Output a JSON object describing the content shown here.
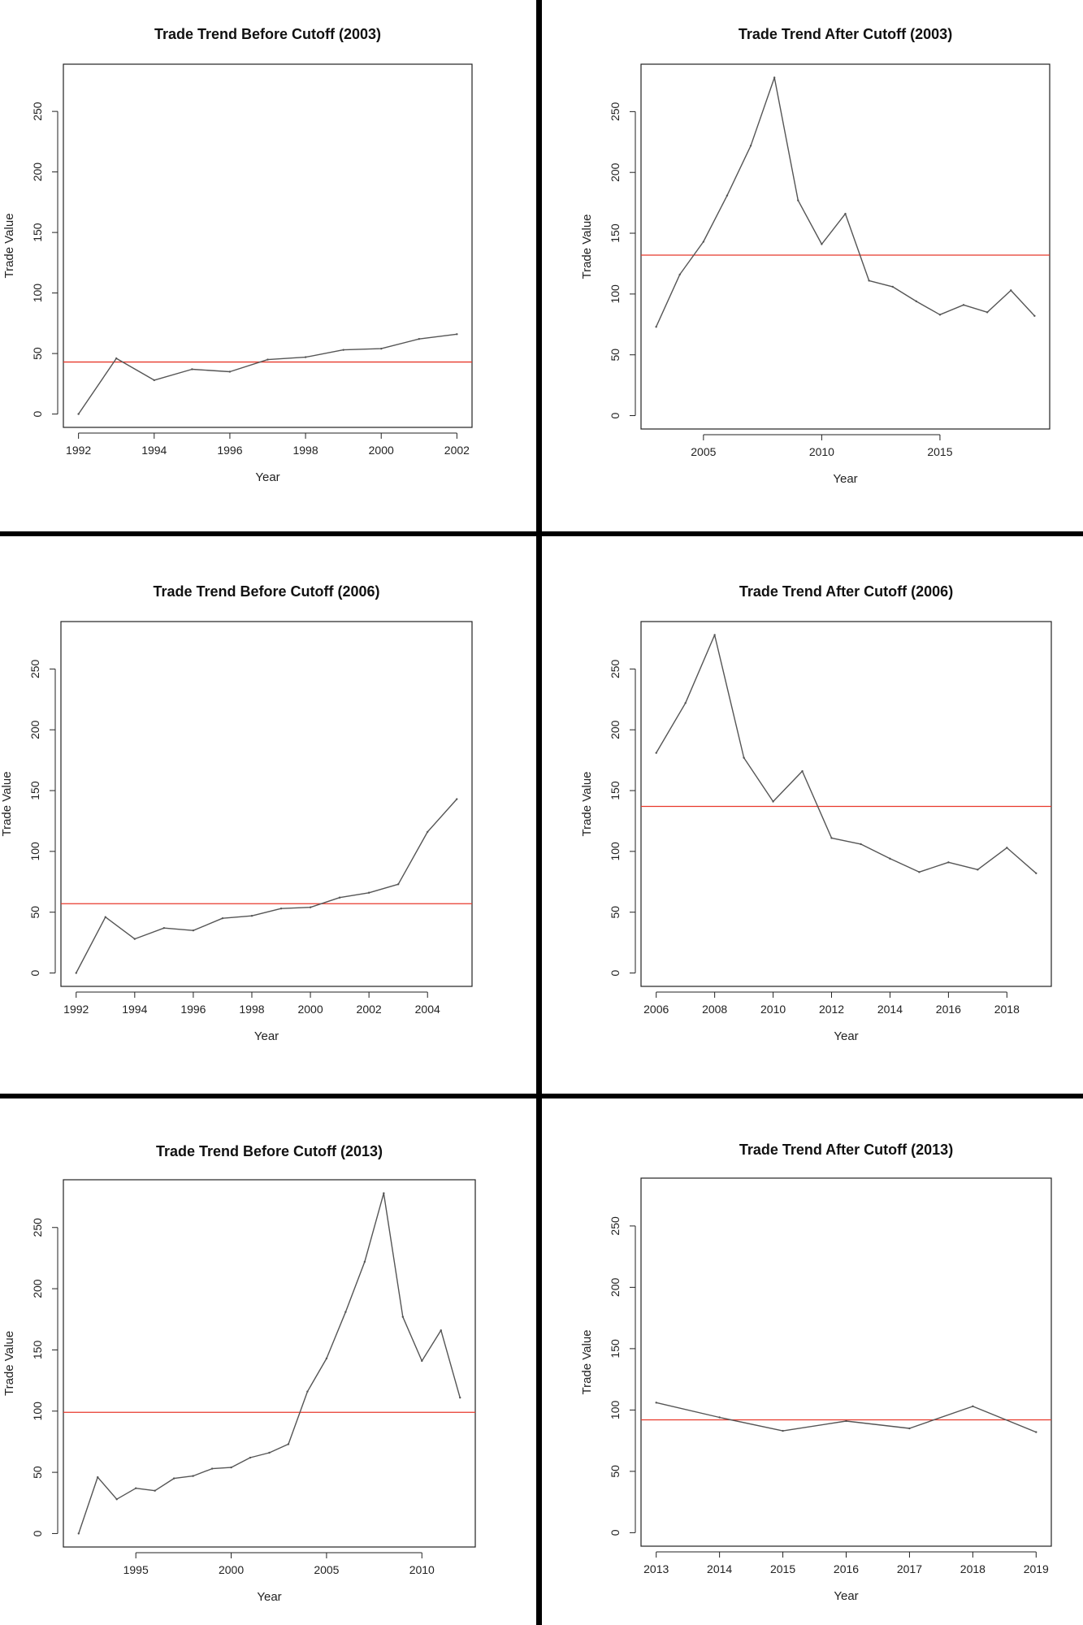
{
  "colors": {
    "series_line": "#555555",
    "mean_line": "#e8392b",
    "axis": "#222222",
    "divider": "#000000",
    "background": "#ffffff"
  },
  "chart_data": [
    {
      "type": "line",
      "title": "Trade Trend Before Cutoff (2003)",
      "xlabel": "Year",
      "ylabel": "Trade Value",
      "xlim": [
        1991.6,
        2002.4
      ],
      "ylim": [
        -11,
        289
      ],
      "xticks": [
        1992,
        1994,
        1996,
        1998,
        2000,
        2002
      ],
      "yticks": [
        0,
        50,
        100,
        150,
        200,
        250
      ],
      "x": [
        1992,
        1993,
        1994,
        1995,
        1996,
        1997,
        1998,
        1999,
        2000,
        2001,
        2002
      ],
      "y": [
        0,
        46,
        28,
        37,
        35,
        45,
        47,
        53,
        54,
        62,
        66
      ],
      "hline": 43,
      "grid": false
    },
    {
      "type": "line",
      "title": "Trade Trend After Cutoff (2003)",
      "xlabel": "Year",
      "ylabel": "Trade Value",
      "xlim": [
        2002.36,
        2019.64
      ],
      "ylim": [
        -11,
        289
      ],
      "xticks": [
        2005,
        2010,
        2015
      ],
      "yticks": [
        0,
        50,
        100,
        150,
        200,
        250
      ],
      "x": [
        2003,
        2004,
        2005,
        2006,
        2007,
        2008,
        2009,
        2010,
        2011,
        2012,
        2013,
        2014,
        2015,
        2016,
        2017,
        2018,
        2019
      ],
      "y": [
        73,
        116,
        143,
        181,
        222,
        278,
        177,
        141,
        166,
        111,
        106,
        94,
        83,
        91,
        85,
        103,
        82
      ],
      "hline": 132,
      "grid": false
    },
    {
      "type": "line",
      "title": "Trade Trend Before Cutoff (2006)",
      "xlabel": "Year",
      "ylabel": "Trade Value",
      "xlim": [
        1991.48,
        2005.52
      ],
      "ylim": [
        -11,
        289
      ],
      "xticks": [
        1992,
        1994,
        1996,
        1998,
        2000,
        2002,
        2004
      ],
      "yticks": [
        0,
        50,
        100,
        150,
        200,
        250
      ],
      "x": [
        1992,
        1993,
        1994,
        1995,
        1996,
        1997,
        1998,
        1999,
        2000,
        2001,
        2002,
        2003,
        2004,
        2005
      ],
      "y": [
        0,
        46,
        28,
        37,
        35,
        45,
        47,
        53,
        54,
        62,
        66,
        73,
        116,
        143
      ],
      "hline": 57,
      "grid": false
    },
    {
      "type": "line",
      "title": "Trade Trend After Cutoff (2006)",
      "xlabel": "Year",
      "ylabel": "Trade Value",
      "xlim": [
        2005.48,
        2019.52
      ],
      "ylim": [
        -11,
        289
      ],
      "xticks": [
        2006,
        2008,
        2010,
        2012,
        2014,
        2016,
        2018
      ],
      "yticks": [
        0,
        50,
        100,
        150,
        200,
        250
      ],
      "x": [
        2006,
        2007,
        2008,
        2009,
        2010,
        2011,
        2012,
        2013,
        2014,
        2015,
        2016,
        2017,
        2018,
        2019
      ],
      "y": [
        181,
        222,
        278,
        177,
        141,
        166,
        111,
        106,
        94,
        83,
        91,
        85,
        103,
        82
      ],
      "hline": 137,
      "grid": false
    },
    {
      "type": "line",
      "title": "Trade Trend Before Cutoff (2013)",
      "xlabel": "Year",
      "ylabel": "Trade Value",
      "xlim": [
        1991.2,
        2012.8
      ],
      "ylim": [
        -11,
        289
      ],
      "xticks": [
        1995,
        2000,
        2005,
        2010
      ],
      "yticks": [
        0,
        50,
        100,
        150,
        200,
        250
      ],
      "x": [
        1992,
        1993,
        1994,
        1995,
        1996,
        1997,
        1998,
        1999,
        2000,
        2001,
        2002,
        2003,
        2004,
        2005,
        2006,
        2007,
        2008,
        2009,
        2010,
        2011,
        2012
      ],
      "y": [
        0,
        46,
        28,
        37,
        35,
        45,
        47,
        53,
        54,
        62,
        66,
        73,
        116,
        143,
        181,
        222,
        278,
        177,
        141,
        166,
        111
      ],
      "hline": 99,
      "grid": false
    },
    {
      "type": "line",
      "title": "Trade Trend After Cutoff (2013)",
      "xlabel": "Year",
      "ylabel": "Trade Value",
      "xlim": [
        2012.76,
        2019.24
      ],
      "ylim": [
        -11,
        289
      ],
      "xticks": [
        2013,
        2014,
        2015,
        2016,
        2017,
        2018,
        2019
      ],
      "yticks": [
        0,
        50,
        100,
        150,
        200,
        250
      ],
      "x": [
        2013,
        2014,
        2015,
        2016,
        2017,
        2018,
        2019
      ],
      "y": [
        106,
        94,
        83,
        91,
        85,
        103,
        82
      ],
      "hline": 92,
      "grid": false
    }
  ]
}
